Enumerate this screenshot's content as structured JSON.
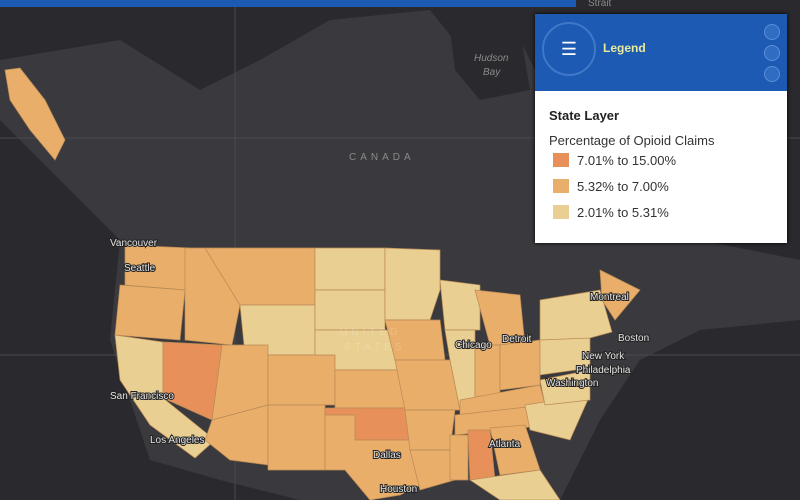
{
  "map": {
    "labels": [
      "Strait",
      "Hudson",
      "Bay",
      "CANADA",
      "Vancouver",
      "Seattle",
      "Montreal",
      "Boston",
      "New York",
      "Philadelphia",
      "Washington",
      "Chicago",
      "Detroit",
      "San Francisco",
      "Los Angeles",
      "Dallas",
      "Houston",
      "Atlanta",
      "UNITED",
      "STATES"
    ]
  },
  "legend": {
    "title": "Legend",
    "layer": "State Layer",
    "field": "Percentage of Opioid Claims",
    "classes": [
      {
        "label": "7.01% to 15.00%",
        "color": "#e8905a"
      },
      {
        "label": "5.32% to 7.00%",
        "color": "#e9ae6a"
      },
      {
        "label": "2.01% to 5.31%",
        "color": "#e9cf92"
      }
    ]
  }
}
